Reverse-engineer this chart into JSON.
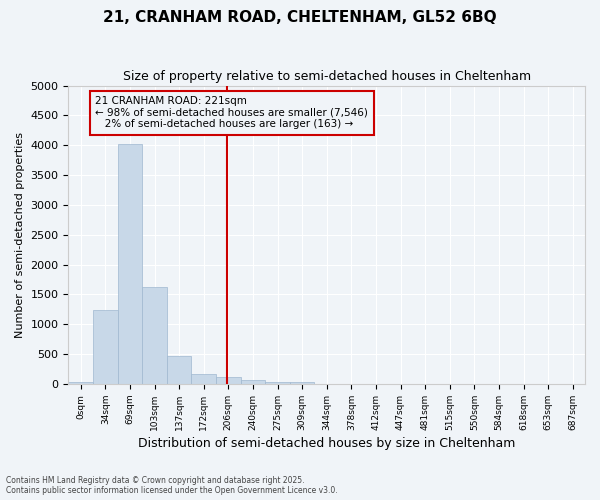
{
  "title_line1": "21, CRANHAM ROAD, CHELTENHAM, GL52 6BQ",
  "title_line2": "Size of property relative to semi-detached houses in Cheltenham",
  "xlabel": "Distribution of semi-detached houses by size in Cheltenham",
  "ylabel": "Number of semi-detached properties",
  "property_label": "21 CRANHAM ROAD: 221sqm",
  "pct_smaller": 98,
  "count_smaller": 7546,
  "pct_larger": 2,
  "count_larger": 163,
  "bin_labels": [
    "0sqm",
    "34sqm",
    "69sqm",
    "103sqm",
    "137sqm",
    "172sqm",
    "206sqm",
    "240sqm",
    "275sqm",
    "309sqm",
    "344sqm",
    "378sqm",
    "412sqm",
    "447sqm",
    "481sqm",
    "515sqm",
    "550sqm",
    "584sqm",
    "618sqm",
    "653sqm",
    "687sqm"
  ],
  "bar_values": [
    30,
    1240,
    4020,
    1620,
    470,
    175,
    110,
    65,
    40,
    30,
    0,
    0,
    0,
    0,
    0,
    0,
    0,
    0,
    0,
    0,
    0
  ],
  "bar_color": "#c8d8e8",
  "bar_edge_color": "#a0b8d0",
  "vline_x": 6.45,
  "vline_color": "#cc0000",
  "ylim": [
    0,
    5000
  ],
  "yticks": [
    0,
    500,
    1000,
    1500,
    2000,
    2500,
    3000,
    3500,
    4000,
    4500,
    5000
  ],
  "footer_line1": "Contains HM Land Registry data © Crown copyright and database right 2025.",
  "footer_line2": "Contains public sector information licensed under the Open Government Licence v3.0.",
  "bg_color": "#f0f4f8",
  "grid_color": "#ffffff"
}
